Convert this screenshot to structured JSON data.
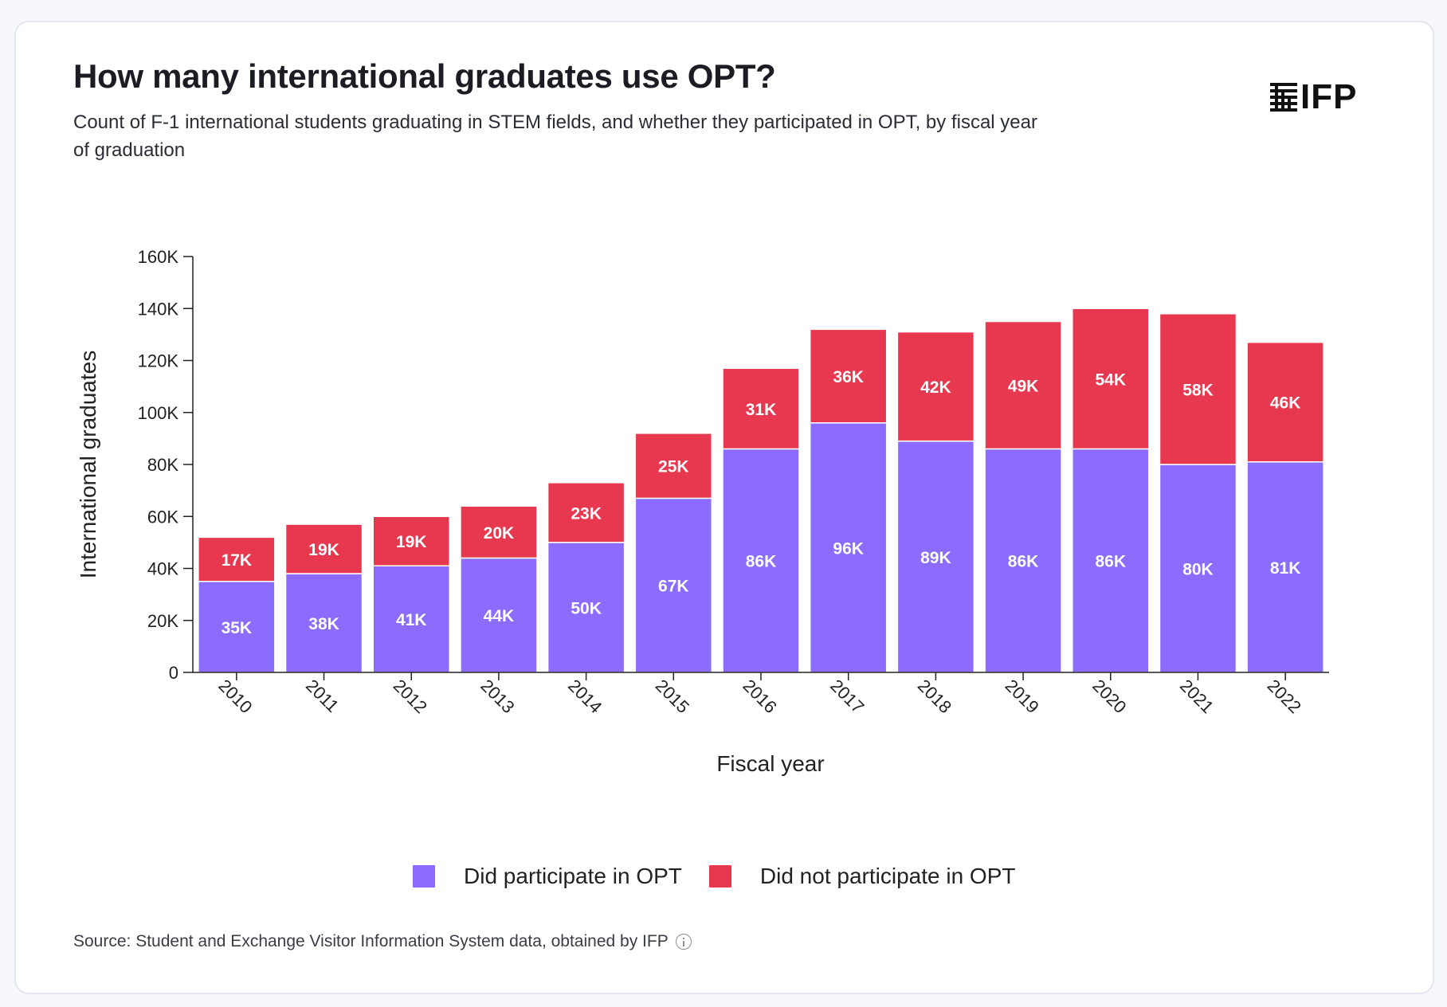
{
  "title": "How many international graduates use OPT?",
  "subtitle": "Count of F-1 international students graduating in STEM fields, and whether they participated in OPT, by fiscal year of graduation",
  "logo": {
    "text": "IFP",
    "icon": "ifp-stripes-icon"
  },
  "source": "Source: Student and Exchange Visitor Information System data, obtained by IFP",
  "colors": {
    "participated": "#8b6cff",
    "not_participated": "#e8384f",
    "axis": "#222222"
  },
  "chart_data": {
    "type": "bar",
    "stacked": true,
    "xlabel": "Fiscal year",
    "ylabel": "International graduates",
    "ylim": [
      0,
      160000
    ],
    "yticks": [
      0,
      20000,
      40000,
      60000,
      80000,
      100000,
      120000,
      140000,
      160000
    ],
    "ytick_labels": [
      "0",
      "20K",
      "40K",
      "60K",
      "80K",
      "100K",
      "120K",
      "140K",
      "160K"
    ],
    "categories": [
      "2010",
      "2011",
      "2012",
      "2013",
      "2014",
      "2015",
      "2016",
      "2017",
      "2018",
      "2019",
      "2020",
      "2021",
      "2022"
    ],
    "series": [
      {
        "name": "Did participate in OPT",
        "color": "#8b6cff",
        "values": [
          35000,
          38000,
          41000,
          44000,
          50000,
          67000,
          86000,
          96000,
          89000,
          86000,
          86000,
          80000,
          81000
        ],
        "labels": [
          "35K",
          "38K",
          "41K",
          "44K",
          "50K",
          "67K",
          "86K",
          "96K",
          "89K",
          "86K",
          "86K",
          "80K",
          "81K"
        ]
      },
      {
        "name": "Did not participate in OPT",
        "color": "#e8384f",
        "values": [
          17000,
          19000,
          19000,
          20000,
          23000,
          25000,
          31000,
          36000,
          42000,
          49000,
          54000,
          58000,
          46000
        ],
        "labels": [
          "17K",
          "19K",
          "19K",
          "20K",
          "23K",
          "25K",
          "31K",
          "36K",
          "42K",
          "49K",
          "54K",
          "58K",
          "46K"
        ]
      }
    ],
    "legend": [
      "Did participate in OPT",
      "Did not participate in OPT"
    ],
    "legend_position": "bottom-center"
  }
}
